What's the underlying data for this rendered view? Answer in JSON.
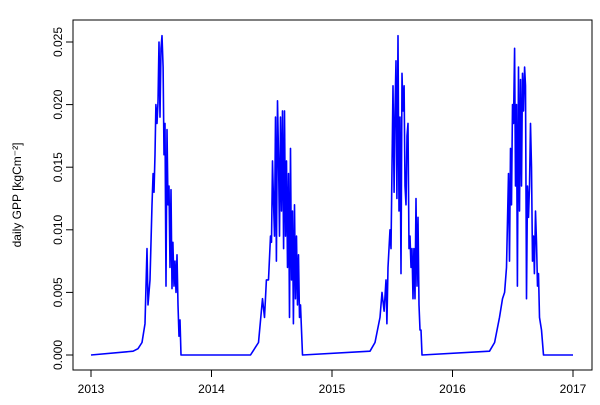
{
  "chart_data": {
    "type": "line",
    "title": "",
    "xlabel": "",
    "ylabel": "daily GPP [kgCm⁻²]",
    "xlim": [
      2012.85,
      2017.05
    ],
    "ylim": [
      0,
      0.0255
    ],
    "x_ticks": [
      2013,
      2014,
      2015,
      2016,
      2017
    ],
    "x_tick_labels": [
      "2013",
      "2014",
      "2015",
      "2016",
      "2017"
    ],
    "y_ticks": [
      0,
      0.005,
      0.01,
      0.015,
      0.02,
      0.025
    ],
    "y_tick_labels": [
      "0.000",
      "0.005",
      "0.010",
      "0.015",
      "0.020",
      "0.025"
    ],
    "grid": false,
    "series_color": "#0000ff",
    "x": [
      2013.0,
      2013.349,
      2013.39,
      2013.423,
      2013.44,
      2013.448,
      2013.465,
      2013.473,
      2013.49,
      2013.506,
      2013.515,
      2013.523,
      2013.531,
      2013.539,
      2013.548,
      2013.556,
      2013.564,
      2013.573,
      2013.581,
      2013.589,
      2013.598,
      2013.606,
      2013.614,
      2013.622,
      2013.631,
      2013.639,
      2013.647,
      2013.656,
      2013.664,
      2013.672,
      2013.68,
      2013.689,
      2013.697,
      2013.705,
      2013.714,
      2013.722,
      2013.73,
      2013.739,
      2013.747,
      2014.324,
      2014.39,
      2014.423,
      2014.44,
      2014.456,
      2014.473,
      2014.49,
      2014.498,
      2014.506,
      2014.515,
      2014.523,
      2014.531,
      2014.539,
      2014.548,
      2014.556,
      2014.564,
      2014.573,
      2014.581,
      2014.589,
      2014.598,
      2014.606,
      2014.614,
      2014.622,
      2014.631,
      2014.639,
      2014.647,
      2014.656,
      2014.664,
      2014.672,
      2014.68,
      2014.689,
      2014.697,
      2014.705,
      2014.714,
      2014.722,
      2014.73,
      2014.739,
      2014.755,
      2015.315,
      2015.357,
      2015.398,
      2015.415,
      2015.432,
      2015.448,
      2015.456,
      2015.465,
      2015.481,
      2015.49,
      2015.498,
      2015.506,
      2015.515,
      2015.523,
      2015.531,
      2015.539,
      2015.548,
      2015.556,
      2015.564,
      2015.573,
      2015.581,
      2015.589,
      2015.598,
      2015.606,
      2015.614,
      2015.622,
      2015.631,
      2015.639,
      2015.647,
      2015.656,
      2015.664,
      2015.672,
      2015.68,
      2015.689,
      2015.697,
      2015.705,
      2015.714,
      2015.722,
      2015.73,
      2015.739,
      2015.747,
      2016.307,
      2016.349,
      2016.39,
      2016.415,
      2016.432,
      2016.448,
      2016.465,
      2016.473,
      2016.481,
      2016.49,
      2016.498,
      2016.506,
      2016.515,
      2016.523,
      2016.531,
      2016.539,
      2016.548,
      2016.556,
      2016.564,
      2016.573,
      2016.581,
      2016.589,
      2016.598,
      2016.606,
      2016.614,
      2016.622,
      2016.631,
      2016.639,
      2016.647,
      2016.656,
      2016.664,
      2016.672,
      2016.68,
      2016.689,
      2016.697,
      2016.705,
      2016.714,
      2016.722,
      2016.73,
      2016.739,
      2016.755,
      2017.0
    ],
    "y": [
      0,
      0.0003,
      0.0005,
      0.001,
      0.002,
      0.0025,
      0.0085,
      0.004,
      0.006,
      0.012,
      0.0145,
      0.013,
      0.016,
      0.02,
      0.0185,
      0.0202,
      0.025,
      0.019,
      0.0245,
      0.0255,
      0.023,
      0.016,
      0.0185,
      0.0055,
      0.018,
      0.012,
      0.0135,
      0.007,
      0.0132,
      0.0053,
      0.009,
      0.0055,
      0.0075,
      0.005,
      0.008,
      0.004,
      0.0015,
      0.0028,
      0,
      0,
      0.001,
      0.0045,
      0.003,
      0.006,
      0.006,
      0.0095,
      0.009,
      0.0155,
      0.012,
      0.0095,
      0.019,
      0.0075,
      0.0203,
      0.016,
      0.0095,
      0.019,
      0.0115,
      0.0195,
      0.0085,
      0.0195,
      0.0095,
      0.0155,
      0.007,
      0.0145,
      0.003,
      0.0165,
      0.006,
      0.0115,
      0.0025,
      0.012,
      0.0045,
      0.0095,
      0.004,
      0.008,
      0.003,
      0.004,
      0,
      0.0003,
      0.001,
      0.003,
      0.005,
      0.0035,
      0.006,
      0.0025,
      0.007,
      0.01,
      0.0085,
      0.015,
      0.0215,
      0.013,
      0.0195,
      0.0235,
      0.0125,
      0.0255,
      0.0115,
      0.019,
      0.0065,
      0.0225,
      0.0195,
      0.0215,
      0.0135,
      0.012,
      0.0175,
      0.0185,
      0.0085,
      0.0095,
      0.007,
      0.0085,
      0.0045,
      0.0085,
      0.0045,
      0.0125,
      0.0055,
      0.011,
      0.004,
      0.002,
      0.002,
      0,
      0.0003,
      0.001,
      0.003,
      0.0045,
      0.005,
      0.007,
      0.0145,
      0.0075,
      0.0165,
      0.012,
      0.02,
      0.0185,
      0.0245,
      0.0135,
      0.02,
      0.0055,
      0.023,
      0.0115,
      0.022,
      0.0135,
      0.0225,
      0.0195,
      0.023,
      0.0215,
      0.0045,
      0.0135,
      0.011,
      0.0135,
      0.0185,
      0.015,
      0.0075,
      0.0095,
      0.0065,
      0.0115,
      0.009,
      0.0055,
      0.0065,
      0.003,
      0.0025,
      0.002,
      0,
      0
    ]
  }
}
